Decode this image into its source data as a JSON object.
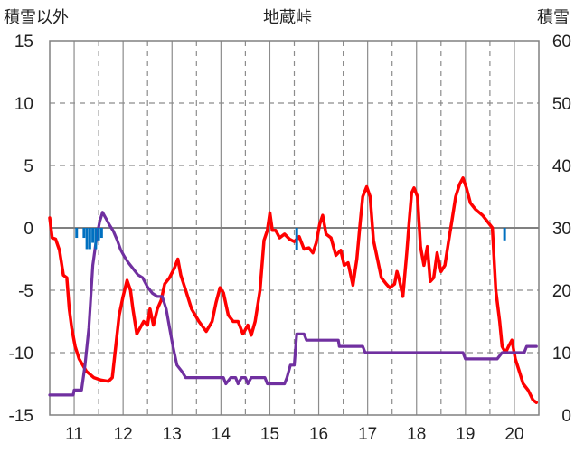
{
  "chart_data": {
    "type": "line",
    "title": "地蔵峠",
    "left_axis_label": "積雪以外",
    "right_axis_label": "積雪",
    "x_ticks": [
      "11",
      "12",
      "13",
      "14",
      "15",
      "16",
      "17",
      "18",
      "19",
      "20"
    ],
    "left_ticks": [
      "15",
      "10",
      "5",
      "0",
      "-5",
      "-10",
      "-15"
    ],
    "right_ticks": [
      "60",
      "50",
      "40",
      "30",
      "20",
      "10",
      "0"
    ],
    "xlim": [
      10.5,
      20.5
    ],
    "ylim_left": [
      -15,
      15
    ],
    "ylim_right": [
      0,
      60
    ],
    "grid": true,
    "colors": {
      "temperature": "#ff0000",
      "snow_depth": "#7030a0",
      "precipitation": "#0070c0",
      "grid": "#8c8c8c",
      "frame": "#808080"
    },
    "series": [
      {
        "key": "temperature",
        "axis": "left",
        "points": [
          [
            10.5,
            0.8
          ],
          [
            10.55,
            -0.8
          ],
          [
            10.62,
            -0.9
          ],
          [
            10.7,
            -1.8
          ],
          [
            10.78,
            -3.8
          ],
          [
            10.85,
            -4.0
          ],
          [
            10.9,
            -6.5
          ],
          [
            10.95,
            -8.0
          ],
          [
            11.02,
            -9.5
          ],
          [
            11.1,
            -10.5
          ],
          [
            11.25,
            -11.5
          ],
          [
            11.4,
            -12.0
          ],
          [
            11.55,
            -12.2
          ],
          [
            11.7,
            -12.3
          ],
          [
            11.78,
            -12.0
          ],
          [
            11.85,
            -9.5
          ],
          [
            11.92,
            -7.0
          ],
          [
            12.0,
            -5.5
          ],
          [
            12.08,
            -4.2
          ],
          [
            12.15,
            -5.0
          ],
          [
            12.2,
            -6.5
          ],
          [
            12.28,
            -8.5
          ],
          [
            12.35,
            -8.0
          ],
          [
            12.42,
            -7.5
          ],
          [
            12.5,
            -7.8
          ],
          [
            12.55,
            -6.5
          ],
          [
            12.62,
            -7.8
          ],
          [
            12.7,
            -6.5
          ],
          [
            12.78,
            -5.8
          ],
          [
            12.85,
            -4.5
          ],
          [
            12.95,
            -4.0
          ],
          [
            13.05,
            -3.2
          ],
          [
            13.12,
            -2.5
          ],
          [
            13.18,
            -3.8
          ],
          [
            13.28,
            -5.0
          ],
          [
            13.4,
            -6.5
          ],
          [
            13.55,
            -7.5
          ],
          [
            13.7,
            -8.3
          ],
          [
            13.82,
            -7.5
          ],
          [
            13.9,
            -6.0
          ],
          [
            13.98,
            -4.8
          ],
          [
            14.05,
            -5.2
          ],
          [
            14.15,
            -7.0
          ],
          [
            14.25,
            -7.5
          ],
          [
            14.35,
            -7.5
          ],
          [
            14.45,
            -8.5
          ],
          [
            14.55,
            -7.8
          ],
          [
            14.62,
            -8.6
          ],
          [
            14.7,
            -7.5
          ],
          [
            14.8,
            -5.0
          ],
          [
            14.88,
            -1.0
          ],
          [
            14.95,
            -0.2
          ],
          [
            15.0,
            1.2
          ],
          [
            15.05,
            -0.2
          ],
          [
            15.12,
            -0.2
          ],
          [
            15.2,
            -0.8
          ],
          [
            15.3,
            -0.5
          ],
          [
            15.4,
            -0.9
          ],
          [
            15.5,
            -1.1
          ],
          [
            15.6,
            -0.7
          ],
          [
            15.7,
            -1.7
          ],
          [
            15.8,
            -1.6
          ],
          [
            15.88,
            -2.0
          ],
          [
            15.95,
            -1.2
          ],
          [
            16.02,
            0.3
          ],
          [
            16.08,
            1.0
          ],
          [
            16.15,
            -0.5
          ],
          [
            16.25,
            -0.8
          ],
          [
            16.35,
            -2.2
          ],
          [
            16.45,
            -1.8
          ],
          [
            16.52,
            -3.0
          ],
          [
            16.6,
            -2.8
          ],
          [
            16.7,
            -4.6
          ],
          [
            16.78,
            -2.5
          ],
          [
            16.85,
            0.5
          ],
          [
            16.9,
            2.5
          ],
          [
            16.98,
            3.3
          ],
          [
            17.05,
            2.5
          ],
          [
            17.12,
            -1.0
          ],
          [
            17.2,
            -2.5
          ],
          [
            17.28,
            -4.0
          ],
          [
            17.38,
            -4.5
          ],
          [
            17.45,
            -4.8
          ],
          [
            17.55,
            -4.5
          ],
          [
            17.6,
            -3.5
          ],
          [
            17.65,
            -4.2
          ],
          [
            17.72,
            -5.5
          ],
          [
            17.8,
            -2.0
          ],
          [
            17.85,
            0.5
          ],
          [
            17.9,
            2.8
          ],
          [
            17.95,
            3.2
          ],
          [
            18.02,
            2.5
          ],
          [
            18.08,
            -1.5
          ],
          [
            18.15,
            -3.0
          ],
          [
            18.22,
            -1.5
          ],
          [
            18.28,
            -4.3
          ],
          [
            18.35,
            -4.0
          ],
          [
            18.42,
            -2.0
          ],
          [
            18.5,
            -3.5
          ],
          [
            18.58,
            -3.0
          ],
          [
            18.65,
            -1.2
          ],
          [
            18.72,
            0.5
          ],
          [
            18.8,
            2.5
          ],
          [
            18.88,
            3.5
          ],
          [
            18.95,
            4.0
          ],
          [
            19.02,
            3.2
          ],
          [
            19.1,
            2.0
          ],
          [
            19.2,
            1.5
          ],
          [
            19.35,
            1.0
          ],
          [
            19.45,
            0.5
          ],
          [
            19.55,
            0.0
          ],
          [
            19.62,
            -5.0
          ],
          [
            19.7,
            -7.5
          ],
          [
            19.75,
            -9.5
          ],
          [
            19.82,
            -10.0
          ],
          [
            19.88,
            -9.5
          ],
          [
            19.95,
            -9.0
          ],
          [
            20.02,
            -10.5
          ],
          [
            20.1,
            -11.5
          ],
          [
            20.18,
            -12.5
          ],
          [
            20.28,
            -13.0
          ],
          [
            20.38,
            -13.8
          ],
          [
            20.45,
            -14.0
          ]
        ]
      },
      {
        "key": "snow_depth",
        "axis": "right",
        "points": [
          [
            10.5,
            3.2
          ],
          [
            10.7,
            3.2
          ],
          [
            10.98,
            3.2
          ],
          [
            11.0,
            4.0
          ],
          [
            11.15,
            4.0
          ],
          [
            11.22,
            8.0
          ],
          [
            11.3,
            14.0
          ],
          [
            11.38,
            24.0
          ],
          [
            11.45,
            28.0
          ],
          [
            11.52,
            31.0
          ],
          [
            11.58,
            32.5
          ],
          [
            11.65,
            31.5
          ],
          [
            11.72,
            30.5
          ],
          [
            11.8,
            29.5
          ],
          [
            11.88,
            28.0
          ],
          [
            11.95,
            26.5
          ],
          [
            12.02,
            25.5
          ],
          [
            12.1,
            24.5
          ],
          [
            12.2,
            23.5
          ],
          [
            12.3,
            22.5
          ],
          [
            12.4,
            22.0
          ],
          [
            12.5,
            20.5
          ],
          [
            12.6,
            19.5
          ],
          [
            12.7,
            19.0
          ],
          [
            12.8,
            19.0
          ],
          [
            12.88,
            17.0
          ],
          [
            12.95,
            14.0
          ],
          [
            13.02,
            11.0
          ],
          [
            13.1,
            8.0
          ],
          [
            13.2,
            7.0
          ],
          [
            13.28,
            6.0
          ],
          [
            13.5,
            6.0
          ],
          [
            13.7,
            6.0
          ],
          [
            14.05,
            6.0
          ],
          [
            14.1,
            5.0
          ],
          [
            14.2,
            6.0
          ],
          [
            14.3,
            6.0
          ],
          [
            14.35,
            5.0
          ],
          [
            14.42,
            6.0
          ],
          [
            14.5,
            6.0
          ],
          [
            14.55,
            5.0
          ],
          [
            14.62,
            6.0
          ],
          [
            14.9,
            6.0
          ],
          [
            14.95,
            5.0
          ],
          [
            15.3,
            5.0
          ],
          [
            15.35,
            6.0
          ],
          [
            15.42,
            8.0
          ],
          [
            15.5,
            8.0
          ],
          [
            15.55,
            13.0
          ],
          [
            15.6,
            13.0
          ],
          [
            15.7,
            13.0
          ],
          [
            15.75,
            12.0
          ],
          [
            16.0,
            12.0
          ],
          [
            16.4,
            12.0
          ],
          [
            16.42,
            11.0
          ],
          [
            16.9,
            11.0
          ],
          [
            16.95,
            10.0
          ],
          [
            17.5,
            10.0
          ],
          [
            18.5,
            10.0
          ],
          [
            18.95,
            10.0
          ],
          [
            19.0,
            9.0
          ],
          [
            19.5,
            9.0
          ],
          [
            19.65,
            9.0
          ],
          [
            19.75,
            10.0
          ],
          [
            20.2,
            10.0
          ],
          [
            20.25,
            11.0
          ],
          [
            20.45,
            11.0
          ]
        ]
      },
      {
        "key": "precipitation",
        "axis": "left",
        "bar_width": 0.055,
        "points": [
          [
            11.05,
            0.8
          ],
          [
            11.2,
            0.8
          ],
          [
            11.26,
            1.7
          ],
          [
            11.32,
            1.7
          ],
          [
            11.38,
            1.2
          ],
          [
            11.44,
            1.7
          ],
          [
            11.5,
            1.0
          ],
          [
            11.56,
            0.8
          ],
          [
            15.55,
            1.8
          ],
          [
            19.8,
            1.0
          ]
        ]
      }
    ]
  }
}
